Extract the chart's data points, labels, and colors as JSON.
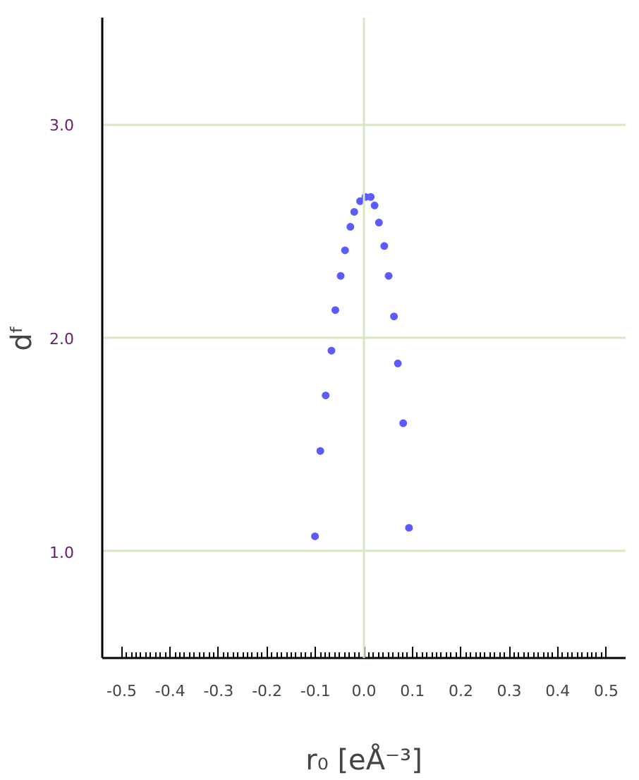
{
  "chart_data": {
    "type": "scatter",
    "xlabel": "r₀ [eÅ⁻³]",
    "ylabel": "dᶠ",
    "x": [
      -0.101,
      -0.09,
      -0.079,
      -0.067,
      -0.059,
      -0.048,
      -0.039,
      -0.028,
      -0.02,
      -0.008,
      0.003,
      0.014,
      0.022,
      0.031,
      0.042,
      0.051,
      0.062,
      0.07,
      0.081,
      0.093
    ],
    "series": [
      {
        "color": "#5b5bff",
        "values": [
          1.07,
          1.47,
          1.73,
          1.94,
          2.13,
          2.29,
          2.41,
          2.52,
          2.59,
          2.64,
          2.66,
          2.66,
          2.62,
          2.54,
          2.43,
          2.29,
          2.1,
          1.88,
          1.6,
          1.11
        ]
      }
    ],
    "xlim": [
      -0.54,
      0.54
    ],
    "ylim": [
      0.5,
      3.5
    ],
    "xticks": [
      {
        "value": -0.5,
        "label": "-0.5"
      },
      {
        "value": -0.4,
        "label": "-0.4"
      },
      {
        "value": -0.3,
        "label": "-0.3"
      },
      {
        "value": -0.2,
        "label": "-0.2"
      },
      {
        "value": -0.1,
        "label": "-0.1"
      },
      {
        "value": 0,
        "label": "0.0"
      },
      {
        "value": 0.1,
        "label": "0.1"
      },
      {
        "value": 0.2,
        "label": "0.2"
      },
      {
        "value": 0.3,
        "label": "0.3"
      },
      {
        "value": 0.4,
        "label": "0.4"
      },
      {
        "value": 0.5,
        "label": "0.5"
      }
    ],
    "yticks": [
      {
        "value": 1,
        "label": "1.0"
      },
      {
        "value": 2,
        "label": "2.0"
      },
      {
        "value": 3,
        "label": "3.0"
      }
    ],
    "grid": "y",
    "marker": "circle",
    "ref_lines": [
      {
        "axis": "x",
        "value": 0,
        "color": "#d5e8c0"
      }
    ]
  }
}
